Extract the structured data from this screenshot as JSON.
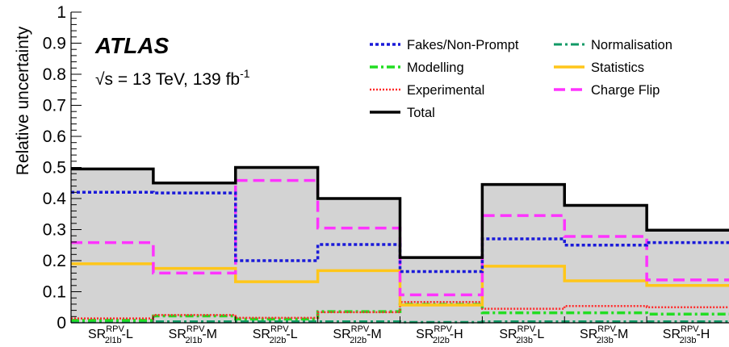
{
  "chart_data": {
    "type": "histogram-step",
    "ylabel": "Relative uncertainty",
    "ylim": [
      0,
      1
    ],
    "yticks": [
      "0",
      "0.1",
      "0.2",
      "0.3",
      "0.4",
      "0.5",
      "0.6",
      "0.7",
      "0.8",
      "0.9",
      "1"
    ],
    "experiment": "ATLAS",
    "energy_label": "√s = 13 TeV, 139 fb",
    "energy_sup": "-1",
    "categories": [
      {
        "base": "SR",
        "sup": "RPV",
        "sub": "2l1b",
        "suffix": "-L"
      },
      {
        "base": "SR",
        "sup": "RPV",
        "sub": "2l1b",
        "suffix": "-M"
      },
      {
        "base": "SR",
        "sup": "RPV",
        "sub": "2l2b",
        "suffix": "-L"
      },
      {
        "base": "SR",
        "sup": "RPV",
        "sub": "2l2b",
        "suffix": "-M"
      },
      {
        "base": "SR",
        "sup": "RPV",
        "sub": "2l2b",
        "suffix": "-H"
      },
      {
        "base": "SR",
        "sup": "RPV",
        "sub": "2l3b",
        "suffix": "-L"
      },
      {
        "base": "SR",
        "sup": "RPV",
        "sub": "2l3b",
        "suffix": "-M"
      },
      {
        "base": "SR",
        "sup": "RPV",
        "sub": "2l3b",
        "suffix": "-H"
      }
    ],
    "series": [
      {
        "name": "Total",
        "color": "#000000",
        "style": "solid",
        "width": 3.5,
        "filled": true,
        "fill": "#d3d3d3",
        "values": [
          0.495,
          0.45,
          0.5,
          0.4,
          0.21,
          0.445,
          0.378,
          0.298
        ]
      },
      {
        "name": "Fakes/Non-Prompt",
        "color": "#1a1ad9",
        "style": "dotted",
        "width": 3.5,
        "values": [
          0.42,
          0.418,
          0.2,
          0.252,
          0.165,
          0.27,
          0.25,
          0.258
        ]
      },
      {
        "name": "Charge Flip",
        "color": "#ff33ff",
        "style": "dashed",
        "width": 3.5,
        "values": [
          0.258,
          0.16,
          0.458,
          0.305,
          0.09,
          0.345,
          0.278,
          0.138
        ]
      },
      {
        "name": "Statistics",
        "color": "#ffc61a",
        "style": "solid",
        "width": 3.5,
        "values": [
          0.19,
          0.175,
          0.132,
          0.168,
          0.057,
          0.182,
          0.135,
          0.12
        ]
      },
      {
        "name": "Experimental",
        "color": "#ff2a2a",
        "style": "finedot",
        "width": 2.5,
        "values": [
          0.014,
          0.025,
          0.016,
          0.034,
          0.067,
          0.045,
          0.054,
          0.05
        ]
      },
      {
        "name": "Modelling",
        "color": "#22dd22",
        "style": "dashdot",
        "width": 3.5,
        "values": [
          0.008,
          0.022,
          0.012,
          0.036,
          0.059,
          0.032,
          0.032,
          0.028
        ]
      },
      {
        "name": "Normalisation",
        "color": "#119966",
        "style": "dashdot",
        "width": 3,
        "values": [
          0.004,
          0.004,
          0.004,
          0.004,
          0.002,
          0.004,
          0.004,
          0.004
        ]
      }
    ],
    "legend": {
      "column1": [
        "Fakes/Non-Prompt",
        "Modelling",
        "Experimental",
        "Total"
      ],
      "column2": [
        "Normalisation",
        "Statistics",
        "Charge Flip"
      ],
      "placement": "top-right"
    }
  }
}
